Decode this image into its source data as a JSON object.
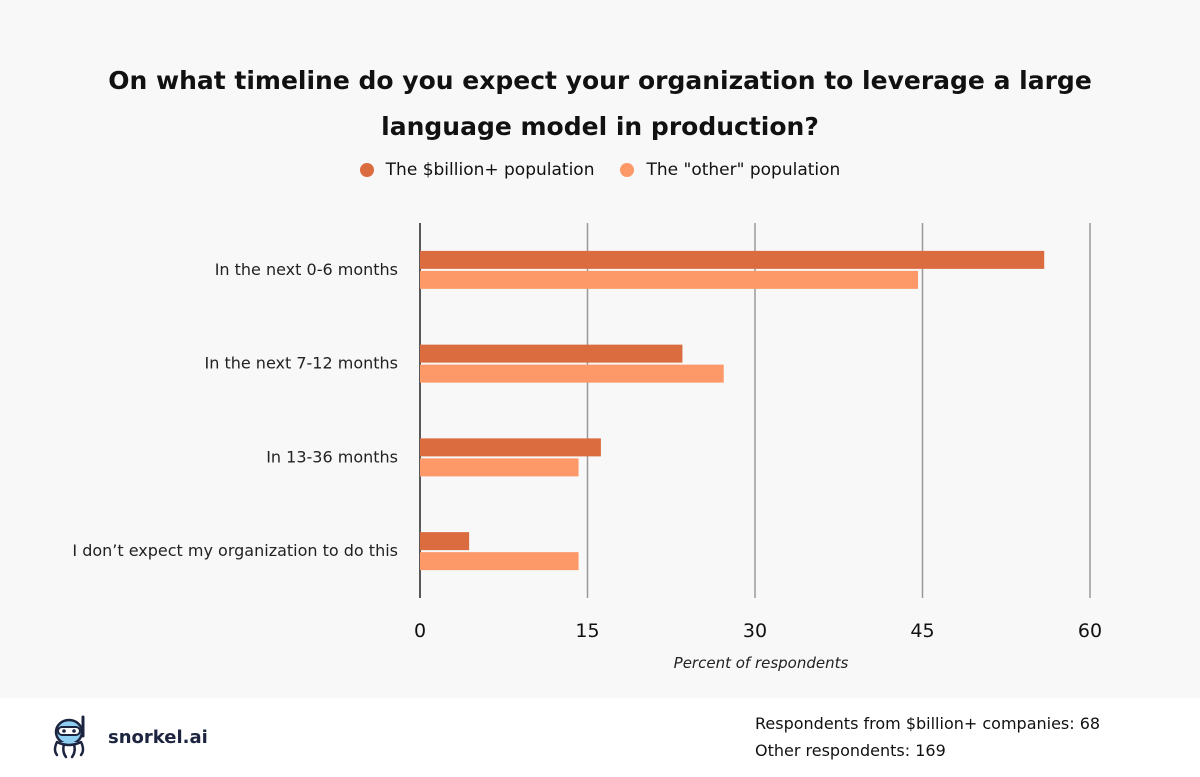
{
  "chart_data": {
    "type": "bar",
    "orientation": "horizontal",
    "title_lines": [
      "On what timeline do you expect your organization to leverage a large",
      "language model in production?"
    ],
    "categories": [
      "In the next 0-6 months",
      "In the next 7-12 months",
      "In 13-36 months",
      "I don’t expect my organization to do this"
    ],
    "series": [
      {
        "name": "The $billion+ population",
        "color": "#da6c3f",
        "values": [
          55.9,
          23.5,
          16.2,
          4.4
        ]
      },
      {
        "name": "The \"other\" population",
        "color": "#fd9968",
        "values": [
          44.6,
          27.2,
          14.2,
          14.2
        ]
      }
    ],
    "xlabel": "Percent of respondents",
    "ylabel": "",
    "xlim": [
      0,
      60
    ],
    "xticks": [
      "0",
      "15",
      "30",
      "45",
      "60"
    ],
    "grid": true,
    "legend_position": "top-center"
  },
  "footer": {
    "brand": "snorkel.ai",
    "respondents_billion": "Respondents from $billion+ companies: 68",
    "respondents_other": "Other respondents: 169"
  }
}
